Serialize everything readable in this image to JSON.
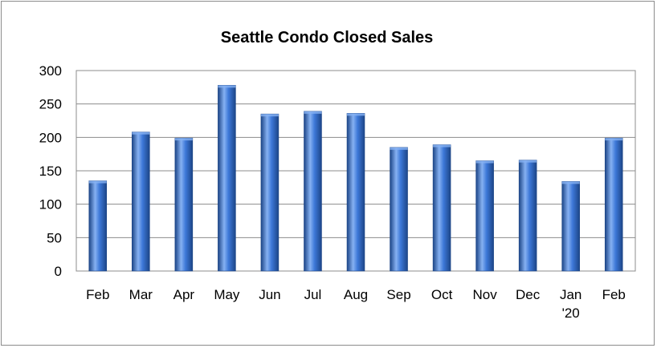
{
  "chart_data": {
    "type": "bar",
    "title": "Seattle Condo Closed Sales",
    "xlabel": "",
    "ylabel": "",
    "categories": [
      "Feb",
      "Mar",
      "Apr",
      "May",
      "Jun",
      "Jul",
      "Aug",
      "Sep",
      "Oct",
      "Nov",
      "Dec",
      "Jan\n'20",
      "Feb"
    ],
    "values": [
      135,
      208,
      199,
      278,
      235,
      239,
      236,
      185,
      189,
      165,
      166,
      134,
      199
    ],
    "ylim": [
      0,
      300
    ],
    "yticks": [
      0,
      50,
      100,
      150,
      200,
      250,
      300
    ],
    "grid": true,
    "legend": "none",
    "colors": {
      "bar_dark": "#1c4587",
      "bar_mid": "#3d78d8",
      "bar_light": "#86b1f2",
      "grid": "#8c8c8c",
      "axis": "#8c8c8c"
    }
  }
}
